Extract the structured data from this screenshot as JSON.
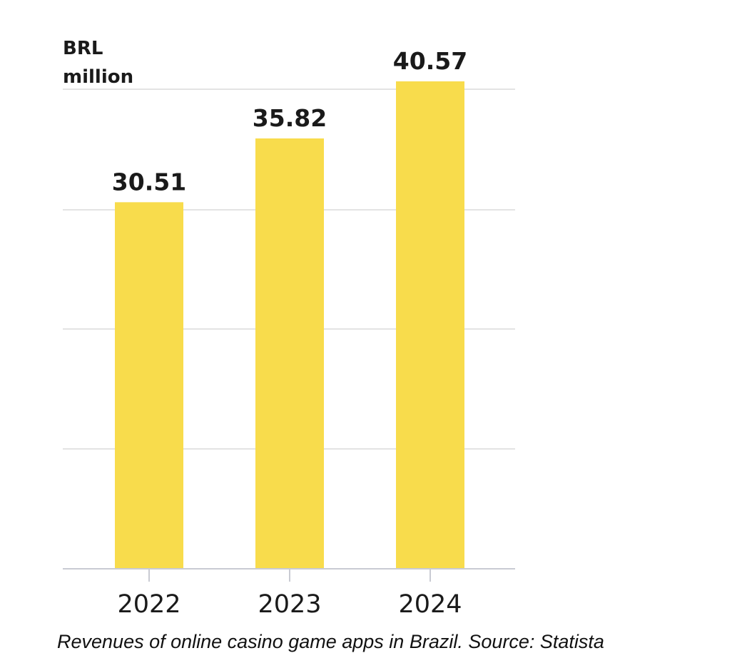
{
  "chart_data": {
    "type": "bar",
    "unit_label": [
      "BRL",
      "million"
    ],
    "categories": [
      "2022",
      "2023",
      "2024"
    ],
    "values": [
      30.51,
      35.82,
      40.57
    ],
    "value_labels": [
      "30.51",
      "35.82",
      "40.57"
    ],
    "ylim": [
      0,
      40.57
    ],
    "grid": true,
    "bar_color": "#f8dc4c",
    "gridline_color": "#e3e3e3",
    "axis_color": "#c9cbd3"
  },
  "caption": "Revenues of online casino game apps in Brazil. Source: Statista"
}
